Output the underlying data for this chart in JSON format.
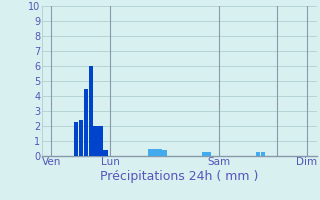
{
  "xlabel": "Précipitations 24h ( mm )",
  "background_color": "#d8f0f0",
  "grid_color": "#aac8c8",
  "axis_label_color": "#5555bb",
  "day_line_color": "#8899aa",
  "ylim": [
    0,
    10
  ],
  "yticks": [
    0,
    1,
    2,
    3,
    4,
    5,
    6,
    7,
    8,
    9,
    10
  ],
  "total_bars": 56,
  "bar_width": 0.9,
  "bar_positions": [
    7,
    8,
    9,
    10,
    11,
    12,
    13,
    22,
    23,
    24,
    25,
    33,
    34,
    44,
    45
  ],
  "bar_heights": [
    2.3,
    2.4,
    4.5,
    6.0,
    2.0,
    2.0,
    0.4,
    0.5,
    0.5,
    0.5,
    0.4,
    0.3,
    0.3,
    0.3,
    0.3
  ],
  "bar_colors": [
    "#0044cc",
    "#0044cc",
    "#0044cc",
    "#0044cc",
    "#0044cc",
    "#0044cc",
    "#0044cc",
    "#44aaee",
    "#44aaee",
    "#44aaee",
    "#44aaee",
    "#44aaee",
    "#44aaee",
    "#44aaee",
    "#44aaee"
  ],
  "xtick_positions": [
    2,
    14,
    36,
    48,
    54
  ],
  "xtick_labels": [
    "Ven",
    "Lun",
    "Sam",
    "",
    "Dim"
  ],
  "day_lines": [
    2,
    14,
    36,
    48,
    54
  ],
  "xlabel_fontsize": 9,
  "ytick_fontsize": 7,
  "xtick_fontsize": 7.5
}
